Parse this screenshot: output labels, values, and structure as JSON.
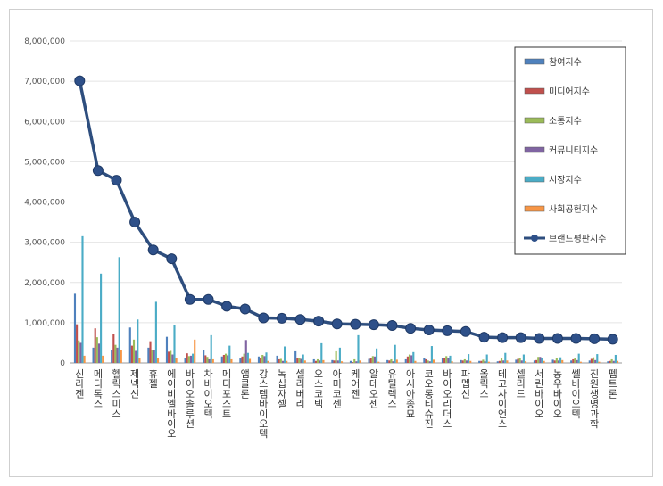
{
  "chart_data": {
    "type": "bar+line",
    "ylim": [
      0,
      8000000
    ],
    "yticks": [
      "0",
      "1,000,000",
      "2,000,000",
      "3,000,000",
      "4,000,000",
      "5,000,000",
      "6,000,000",
      "7,000,000",
      "8,000,000"
    ],
    "categories": [
      "신라젠",
      "메디톡스",
      "헬릭스미스",
      "제넥신",
      "휴젤",
      "에이비엘바이오",
      "바이오솔루션",
      "차바이오텍",
      "메디포스트",
      "앱클론",
      "강스템바이오텍",
      "녹십자셀",
      "셀리버리",
      "오스코텍",
      "아미코젠",
      "케어젠",
      "알테오젠",
      "유틸렉스",
      "아시아종묘",
      "코오롱티슈진",
      "바이오리더스",
      "파멥신",
      "올릭스",
      "테고사이언스",
      "셀리드",
      "서린바이오",
      "농우바이오",
      "쎌바이오텍",
      "진원생명과학",
      "펩트론"
    ],
    "series": [
      {
        "name": "참여지수",
        "color": "#4f81bd",
        "values": [
          1720000,
          380000,
          330000,
          880000,
          380000,
          650000,
          130000,
          330000,
          160000,
          110000,
          160000,
          180000,
          290000,
          90000,
          70000,
          50000,
          100000,
          70000,
          90000,
          130000,
          120000,
          70000,
          50000,
          40000,
          80000,
          60000,
          80000,
          60000,
          60000,
          40000
        ]
      },
      {
        "name": "미디어지수",
        "color": "#c0504d",
        "values": [
          960000,
          860000,
          730000,
          430000,
          540000,
          280000,
          240000,
          190000,
          200000,
          160000,
          120000,
          90000,
          110000,
          50000,
          60000,
          20000,
          120000,
          60000,
          160000,
          90000,
          120000,
          60000,
          50000,
          50000,
          100000,
          70000,
          60000,
          90000,
          100000,
          50000
        ]
      },
      {
        "name": "소통지수",
        "color": "#9bbb59",
        "values": [
          560000,
          640000,
          450000,
          580000,
          330000,
          300000,
          170000,
          150000,
          230000,
          230000,
          200000,
          100000,
          120000,
          90000,
          290000,
          90000,
          170000,
          90000,
          210000,
          60000,
          170000,
          90000,
          80000,
          110000,
          130000,
          150000,
          130000,
          130000,
          140000,
          90000
        ]
      },
      {
        "name": "커뮤니티지수",
        "color": "#8064a2",
        "values": [
          500000,
          480000,
          380000,
          300000,
          320000,
          210000,
          180000,
          90000,
          190000,
          570000,
          170000,
          50000,
          100000,
          60000,
          60000,
          40000,
          160000,
          40000,
          190000,
          40000,
          130000,
          60000,
          40000,
          60000,
          60000,
          150000,
          60000,
          70000,
          70000,
          50000
        ]
      },
      {
        "name": "시장지수",
        "color": "#4bacc6",
        "values": [
          3150000,
          2220000,
          2630000,
          1080000,
          1520000,
          950000,
          230000,
          690000,
          430000,
          250000,
          260000,
          410000,
          210000,
          490000,
          380000,
          690000,
          360000,
          450000,
          270000,
          420000,
          180000,
          220000,
          210000,
          250000,
          210000,
          130000,
          140000,
          230000,
          220000,
          200000
        ]
      },
      {
        "name": "사회공헌지수",
        "color": "#f79646",
        "values": [
          180000,
          180000,
          330000,
          130000,
          130000,
          120000,
          580000,
          90000,
          90000,
          100000,
          50000,
          50000,
          60000,
          70000,
          40000,
          60000,
          30000,
          80000,
          50000,
          80000,
          40000,
          50000,
          30000,
          60000,
          40000,
          50000,
          70000,
          30000,
          30000,
          50000
        ]
      }
    ],
    "line": {
      "name": "브랜드평판지수",
      "color": "#2e4e7e",
      "values": [
        7010000,
        4780000,
        4540000,
        3500000,
        2810000,
        2590000,
        1580000,
        1580000,
        1410000,
        1340000,
        1120000,
        1110000,
        1080000,
        1040000,
        970000,
        960000,
        950000,
        930000,
        860000,
        820000,
        800000,
        780000,
        640000,
        630000,
        630000,
        610000,
        610000,
        610000,
        600000,
        590000
      ]
    },
    "legend_position": "top-right",
    "grid": true
  }
}
